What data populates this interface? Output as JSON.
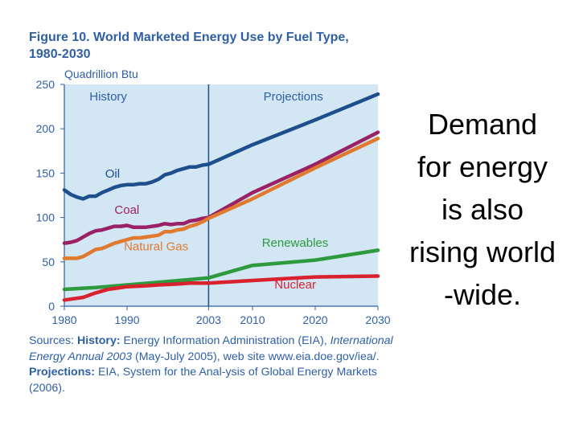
{
  "figure": {
    "number": "Figure 10.",
    "title": "World Marketed Energy Use by Fuel Type, 1980-2030",
    "unit_label": "Quadrillion Btu"
  },
  "chart_data": {
    "type": "line",
    "title": "World Marketed Energy Use by Fuel Type, 1980-2030",
    "ylabel": "Quadrillion Btu",
    "xlim": [
      1980,
      2030
    ],
    "ylim": [
      0,
      250
    ],
    "yticks": [
      0,
      50,
      100,
      150,
      200,
      250
    ],
    "xticks": [
      1980,
      1990,
      2003,
      2010,
      2020,
      2030
    ],
    "divider_year": 2003,
    "regions": [
      {
        "label": "History",
        "x": 1987
      },
      {
        "label": "Projections",
        "x": 2016.5
      }
    ],
    "background": "#d2e6f4",
    "series": [
      {
        "name": "Oil",
        "color": "#1f4e8c",
        "label_x": 1986.5,
        "label_y": 145,
        "x": [
          1980,
          1981,
          1982,
          1983,
          1984,
          1985,
          1986,
          1987,
          1988,
          1989,
          1990,
          1991,
          1992,
          1993,
          1994,
          1995,
          1996,
          1997,
          1998,
          1999,
          2000,
          2001,
          2002,
          2003,
          2010,
          2020,
          2030
        ],
        "y": [
          131,
          126,
          123,
          121,
          124,
          124,
          128,
          131,
          134,
          136,
          137,
          137,
          138,
          138,
          140,
          143,
          148,
          150,
          153,
          155,
          157,
          157,
          159,
          160,
          182,
          210,
          239
        ]
      },
      {
        "name": "Coal",
        "color": "#9b2166",
        "label_x": 1988,
        "label_y": 104,
        "x": [
          1980,
          1981,
          1982,
          1983,
          1984,
          1985,
          1986,
          1987,
          1988,
          1989,
          1990,
          1991,
          1992,
          1993,
          1994,
          1995,
          1996,
          1997,
          1998,
          1999,
          2000,
          2001,
          2002,
          2003,
          2010,
          2020,
          2030
        ],
        "y": [
          71,
          72,
          74,
          78,
          82,
          85,
          86,
          88,
          90,
          90,
          91,
          89,
          89,
          89,
          90,
          91,
          93,
          92,
          93,
          93,
          96,
          97,
          99,
          100,
          128,
          160,
          196
        ]
      },
      {
        "name": "Natural Gas",
        "color": "#e07a2e",
        "label_x": 1989.5,
        "label_y": 63,
        "x": [
          1980,
          1981,
          1982,
          1983,
          1984,
          1985,
          1986,
          1987,
          1988,
          1989,
          1990,
          1991,
          1992,
          1993,
          1994,
          1995,
          1996,
          1997,
          1998,
          1999,
          2000,
          2001,
          2002,
          2003,
          2010,
          2020,
          2030
        ],
        "y": [
          54,
          54,
          54,
          56,
          60,
          64,
          65,
          68,
          71,
          73,
          75,
          77,
          77,
          78,
          79,
          80,
          84,
          84,
          86,
          87,
          90,
          92,
          95,
          99,
          121,
          156,
          189
        ]
      },
      {
        "name": "Renewables",
        "color": "#2e9a3e",
        "label_x": 2011.5,
        "label_y": 67,
        "x": [
          1980,
          1985,
          1990,
          1995,
          2000,
          2003,
          2010,
          2020,
          2030
        ],
        "y": [
          19,
          21,
          24,
          27,
          30,
          32,
          46,
          52,
          63
        ]
      },
      {
        "name": "Nuclear",
        "color": "#d8232f",
        "label_x": 2013.5,
        "label_y": 20,
        "x": [
          1980,
          1983,
          1985,
          1987,
          1990,
          1993,
          1995,
          1998,
          2000,
          2003,
          2010,
          2020,
          2030
        ],
        "y": [
          7,
          10,
          15,
          19,
          22,
          23,
          24,
          25,
          26,
          26,
          29,
          33,
          34
        ]
      }
    ]
  },
  "sources": {
    "lead": "Sources:",
    "history_label": "History:",
    "history_org": "Energy Information Administration (EIA),",
    "publication": "International Energy Annual 2003",
    "pub_tail": "(May-July 2005), web site",
    "url": "www.eia.doe.gov/iea/.",
    "projections_label": "Projections:",
    "projections_text": "EIA, System for the Anal-ysis of Global Energy Markets (2006)."
  },
  "side_text": {
    "line1": "Demand",
    "line2": "for energy",
    "line3": "is also",
    "line4": "rising world",
    "line5": "-wide."
  }
}
